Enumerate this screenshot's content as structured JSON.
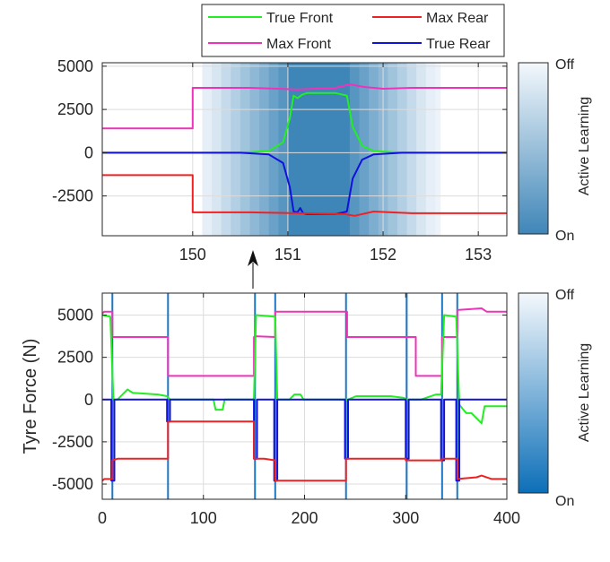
{
  "legend": {
    "entries": [
      {
        "name": "True Front",
        "color": "#22ee22"
      },
      {
        "name": "Max Rear",
        "color": "#ee2222"
      },
      {
        "name": "Max Front",
        "color": "#ee33bb"
      },
      {
        "name": "True Rear",
        "color": "#1111dd"
      }
    ]
  },
  "colorbar": {
    "title": "Active Learning",
    "top_label": "Off",
    "bottom_label": "On",
    "low_color": "#f4f8fc",
    "high_color_top": "#3f86b8",
    "high_color_bottom": "#0c6fb8"
  },
  "chart_data": [
    {
      "type": "line",
      "title": "",
      "xlabel": "",
      "ylabel": "",
      "xlim": [
        149.05,
        153.3
      ],
      "ylim": [
        -4800,
        5200
      ],
      "xticks": [
        "150",
        "151",
        "152",
        "153"
      ],
      "yticks": [
        "5000",
        "2500",
        "0",
        "-2500"
      ],
      "grid": true,
      "active_learning_band": {
        "x": [
          150.1,
          150.2,
          150.3,
          150.4,
          150.5,
          150.6,
          150.7,
          150.8,
          150.9,
          151.0,
          151.65,
          151.75,
          151.85,
          151.95,
          152.05,
          152.15,
          152.25,
          152.35,
          152.45,
          152.55,
          152.6
        ],
        "level": [
          0.08,
          0.16,
          0.26,
          0.36,
          0.46,
          0.56,
          0.66,
          0.76,
          0.86,
          1.0,
          0.86,
          0.76,
          0.66,
          0.56,
          0.46,
          0.36,
          0.26,
          0.16,
          0.08,
          0.04
        ]
      },
      "series": [
        {
          "name": "Max Front",
          "x": [
            149.05,
            150.0,
            150.0,
            150.6,
            150.9,
            151.1,
            151.5,
            151.65,
            151.8,
            152.0,
            152.3,
            153.3
          ],
          "y": [
            1400,
            1400,
            3750,
            3750,
            3700,
            3650,
            3750,
            3950,
            3800,
            3700,
            3750,
            3750
          ]
        },
        {
          "name": "True Front",
          "x": [
            149.05,
            150.5,
            150.8,
            150.95,
            151.02,
            151.06,
            151.1,
            151.15,
            151.2,
            151.5,
            151.62,
            151.68,
            151.78,
            151.9,
            152.2,
            153.3
          ],
          "y": [
            0,
            0,
            100,
            600,
            2000,
            3300,
            3150,
            3350,
            3450,
            3450,
            3300,
            1500,
            400,
            100,
            0,
            0
          ]
        },
        {
          "name": "True Rear",
          "x": [
            149.05,
            150.5,
            150.8,
            150.95,
            151.02,
            151.06,
            151.1,
            151.13,
            151.16,
            151.2,
            151.5,
            151.62,
            151.68,
            151.78,
            151.9,
            152.2,
            153.3
          ],
          "y": [
            0,
            0,
            -100,
            -600,
            -2000,
            -3400,
            -3450,
            -3200,
            -3500,
            -3550,
            -3550,
            -3400,
            -1500,
            -400,
            -100,
            0,
            0
          ]
        },
        {
          "name": "Max Rear",
          "x": [
            149.05,
            150.0,
            150.0,
            150.6,
            151.1,
            151.6,
            151.7,
            151.9,
            152.3,
            153.3
          ],
          "y": [
            -1300,
            -1300,
            -3450,
            -3450,
            -3500,
            -3550,
            -3650,
            -3400,
            -3500,
            -3500
          ]
        }
      ]
    },
    {
      "type": "line",
      "title": "",
      "xlabel": "",
      "ylabel": "Tyre Force (N)",
      "xlim": [
        0,
        400
      ],
      "ylim": [
        -5900,
        6300
      ],
      "xticks": [
        "0",
        "100",
        "200",
        "300",
        "400"
      ],
      "yticks": [
        "5000",
        "2500",
        "0",
        "-2500",
        "-5000"
      ],
      "grid": true,
      "active_learning_events_x": [
        10,
        65,
        151,
        171,
        241,
        301,
        336,
        351
      ],
      "series": [
        {
          "name": "Max Front",
          "x": [
            0,
            2,
            10,
            10,
            65,
            65,
            150,
            150,
            151,
            171,
            171,
            242,
            242,
            300,
            300,
            310,
            310,
            336,
            336,
            351,
            351,
            375,
            380,
            400
          ],
          "y": [
            5100,
            5200,
            5200,
            3700,
            3700,
            1400,
            1400,
            3700,
            3750,
            3700,
            5200,
            5200,
            3700,
            3700,
            3700,
            3700,
            1400,
            1400,
            3700,
            3700,
            5300,
            5400,
            5200,
            5200
          ]
        },
        {
          "name": "True Front",
          "x": [
            0,
            8,
            11,
            15,
            20,
            25,
            30,
            55,
            64,
            67,
            110,
            112,
            117,
            119,
            121,
            150,
            152,
            171,
            173,
            180,
            185,
            190,
            196,
            199,
            240,
            243,
            251,
            255,
            270,
            285,
            298,
            301,
            310,
            315,
            330,
            335,
            338,
            350,
            353,
            357,
            360,
            365,
            370,
            375,
            378,
            400
          ],
          "y": [
            5000,
            4900,
            0,
            0,
            300,
            600,
            400,
            300,
            200,
            0,
            0,
            -600,
            -600,
            -600,
            0,
            0,
            5000,
            4900,
            0,
            0,
            0,
            300,
            300,
            0,
            0,
            0,
            200,
            200,
            200,
            200,
            100,
            0,
            0,
            0,
            300,
            300,
            5000,
            4900,
            -300,
            -600,
            -800,
            -800,
            -1100,
            -1400,
            -400,
            -400
          ]
        },
        {
          "name": "True Rear",
          "x": [
            0,
            9,
            9,
            12,
            12,
            64,
            64,
            67,
            67,
            150,
            150,
            153,
            153,
            170,
            170,
            173,
            173,
            240,
            240,
            243,
            243,
            300,
            300,
            303,
            303,
            335,
            335,
            338,
            338,
            350,
            350,
            353,
            353,
            400
          ],
          "y": [
            0,
            0,
            -4800,
            -4800,
            0,
            0,
            -1300,
            -1300,
            0,
            0,
            -3500,
            -3500,
            0,
            0,
            -4800,
            -4800,
            0,
            0,
            -3500,
            -3500,
            0,
            0,
            -3500,
            -3500,
            0,
            0,
            -3600,
            -3600,
            0,
            0,
            -4800,
            -4800,
            0,
            0
          ]
        },
        {
          "name": "Max Rear",
          "x": [
            0,
            2,
            10,
            10,
            15,
            30,
            65,
            65,
            150,
            150,
            160,
            171,
            171,
            241,
            241,
            300,
            300,
            336,
            336,
            351,
            351,
            370,
            375,
            385,
            400
          ],
          "y": [
            -4800,
            -4700,
            -4700,
            -3600,
            -3500,
            -3500,
            -3500,
            -1300,
            -1300,
            -3500,
            -3500,
            -3600,
            -4800,
            -4800,
            -3500,
            -3500,
            -3600,
            -3600,
            -3500,
            -3500,
            -4700,
            -4600,
            -4500,
            -4700,
            -4700
          ]
        }
      ]
    }
  ]
}
